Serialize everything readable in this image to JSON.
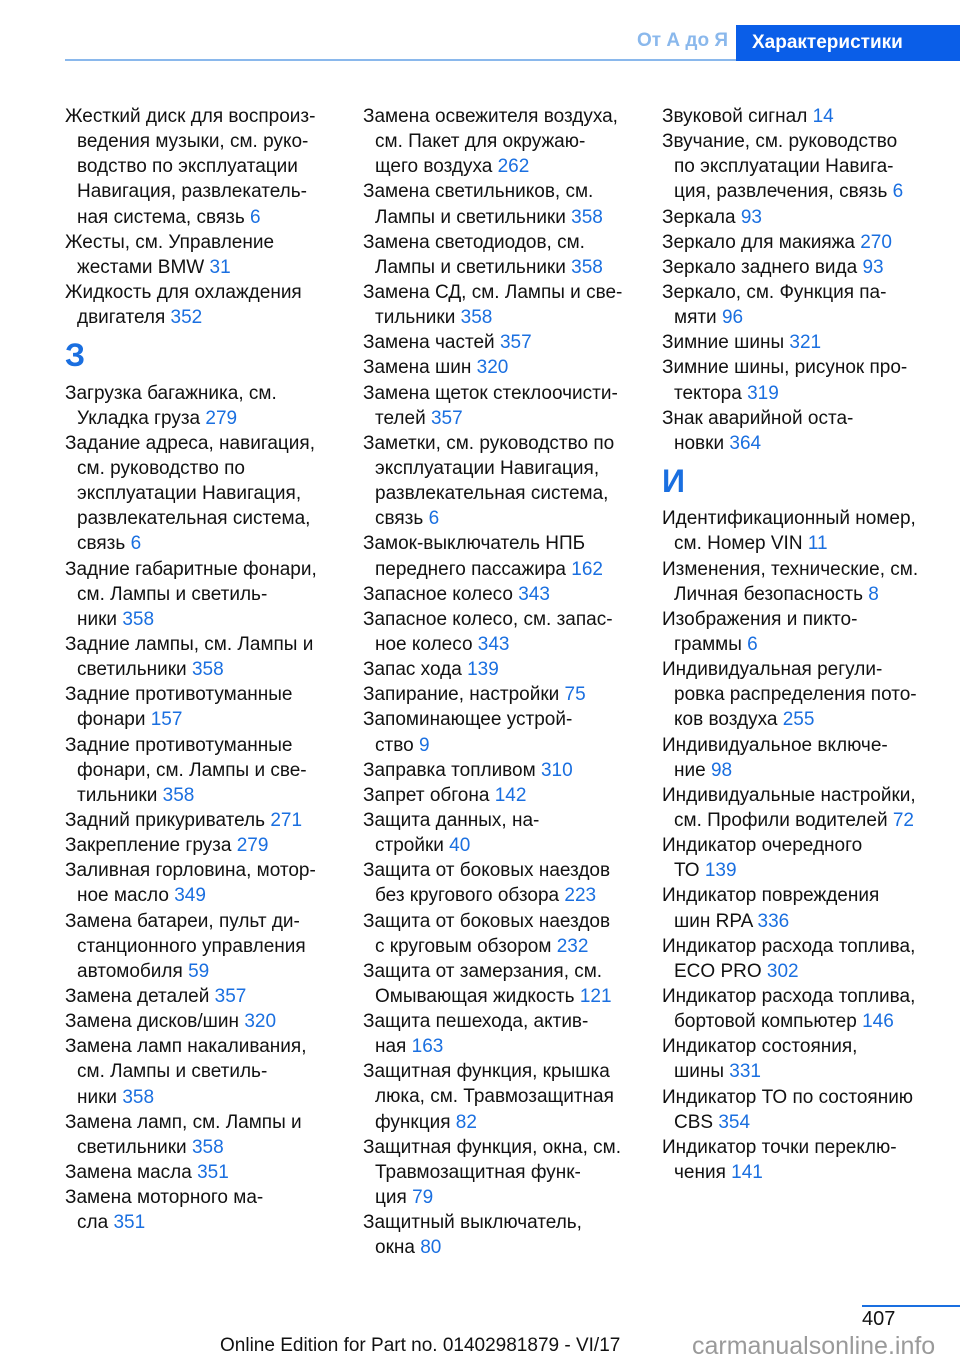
{
  "header": {
    "inactive_tab": "От А до Я",
    "active_tab": "Характеристики"
  },
  "columns": [
    {
      "entries": [
        {
          "lines": [
            "Жесткий диск для воспроиз-",
            "ведения музыки, см. руко-",
            "водство по эксплуатации",
            "Навигация, развлекатель-",
            "ная система, связь"
          ],
          "page": "6"
        },
        {
          "lines": [
            "Жесты, см. Управление",
            "жестами BMW"
          ],
          "page": "31"
        },
        {
          "lines": [
            "Жидкость для охлаждения",
            "двигателя"
          ],
          "page": "352"
        },
        {
          "heading": "З"
        },
        {
          "lines": [
            "Загрузка багажника, см.",
            "Укладка груза"
          ],
          "page": "279"
        },
        {
          "lines": [
            "Задание адреса, навигация,",
            "см. руководство по",
            "эксплуатации Навигация,",
            "развлекательная система,",
            "связь"
          ],
          "page": "6"
        },
        {
          "lines": [
            "Задние габаритные фонари,",
            "см. Лампы и светиль-",
            "ники"
          ],
          "page": "358"
        },
        {
          "lines": [
            "Задние лампы, см. Лампы и",
            "светильники"
          ],
          "page": "358"
        },
        {
          "lines": [
            "Задние противотуманные",
            "фонари"
          ],
          "page": "157"
        },
        {
          "lines": [
            "Задние противотуманные",
            "фонари, см. Лампы и све-",
            "тильники"
          ],
          "page": "358"
        },
        {
          "lines": [
            "Задний прикуриватель"
          ],
          "page": "271"
        },
        {
          "lines": [
            "Закрепление груза"
          ],
          "page": "279"
        },
        {
          "lines": [
            "Заливная горловина, мотор-",
            "ное масло"
          ],
          "page": "349"
        },
        {
          "lines": [
            "Замена батареи, пульт ди-",
            "станционного управления",
            "автомобиля"
          ],
          "page": "59"
        },
        {
          "lines": [
            "Замена деталей"
          ],
          "page": "357"
        },
        {
          "lines": [
            "Замена дисков/шин"
          ],
          "page": "320"
        },
        {
          "lines": [
            "Замена ламп накаливания,",
            "см. Лампы и светиль-",
            "ники"
          ],
          "page": "358"
        },
        {
          "lines": [
            "Замена ламп, см. Лампы и",
            "светильники"
          ],
          "page": "358"
        },
        {
          "lines": [
            "Замена масла"
          ],
          "page": "351"
        },
        {
          "lines": [
            "Замена моторного ма-",
            "сла"
          ],
          "page": "351"
        }
      ]
    },
    {
      "entries": [
        {
          "lines": [
            "Замена освежителя воздуха,",
            "см. Пакет для окружаю-",
            "щего воздуха"
          ],
          "page": "262"
        },
        {
          "lines": [
            "Замена светильников, см.",
            "Лампы и светильники"
          ],
          "page": "358"
        },
        {
          "lines": [
            "Замена светодиодов, см.",
            "Лампы и светильники"
          ],
          "page": "358"
        },
        {
          "lines": [
            "Замена СД, см. Лампы и све-",
            "тильники"
          ],
          "page": "358"
        },
        {
          "lines": [
            "Замена частей"
          ],
          "page": "357"
        },
        {
          "lines": [
            "Замена шин"
          ],
          "page": "320"
        },
        {
          "lines": [
            "Замена щеток стеклоочисти-",
            "телей"
          ],
          "page": "357"
        },
        {
          "lines": [
            "Заметки, см. руководство по",
            "эксплуатации Навигация,",
            "развлекательная система,",
            "связь"
          ],
          "page": "6"
        },
        {
          "lines": [
            "Замок-выключатель НПБ",
            "переднего пассажира"
          ],
          "page": "162"
        },
        {
          "lines": [
            "Запасное колесо"
          ],
          "page": "343"
        },
        {
          "lines": [
            "Запасное колесо, см. запас-",
            "ное колесо"
          ],
          "page": "343"
        },
        {
          "lines": [
            "Запас хода"
          ],
          "page": "139"
        },
        {
          "lines": [
            "Запирание, настройки"
          ],
          "page": "75"
        },
        {
          "lines": [
            "Запоминающее устрой-",
            "ство"
          ],
          "page": "9"
        },
        {
          "lines": [
            "Заправка топливом"
          ],
          "page": "310"
        },
        {
          "lines": [
            "Запрет обгона"
          ],
          "page": "142"
        },
        {
          "lines": [
            "Защита данных, на-",
            "стройки"
          ],
          "page": "40"
        },
        {
          "lines": [
            "Защита от боковых наездов",
            "без кругового обзора"
          ],
          "page": "223"
        },
        {
          "lines": [
            "Защита от боковых наездов",
            "с круговым обзором"
          ],
          "page": "232"
        },
        {
          "lines": [
            "Защита от замерзания, см.",
            "Омывающая жидкость"
          ],
          "page": "121"
        },
        {
          "lines": [
            "Защита пешехода, актив-",
            "ная"
          ],
          "page": "163"
        },
        {
          "lines": [
            "Защитная функция, крышка",
            "люка, см. Травмозащитная",
            "функция"
          ],
          "page": "82"
        },
        {
          "lines": [
            "Защитная функция, окна, см.",
            "Травмозащитная функ-",
            "ция"
          ],
          "page": "79"
        },
        {
          "lines": [
            "Защитный выключатель,",
            "окна"
          ],
          "page": "80"
        }
      ]
    },
    {
      "entries": [
        {
          "lines": [
            "Звуковой сигнал"
          ],
          "page": "14"
        },
        {
          "lines": [
            "Звучание, см. руководство",
            "по эксплуатации Навига-",
            "ция, развлечения, связь"
          ],
          "page": "6"
        },
        {
          "lines": [
            "Зеркала"
          ],
          "page": "93"
        },
        {
          "lines": [
            "Зеркало для макияжа"
          ],
          "page": "270"
        },
        {
          "lines": [
            "Зеркало заднего вида"
          ],
          "page": "93"
        },
        {
          "lines": [
            "Зеркало, см. Функция па-",
            "мяти"
          ],
          "page": "96"
        },
        {
          "lines": [
            "Зимние шины"
          ],
          "page": "321"
        },
        {
          "lines": [
            "Зимние шины, рисунок про-",
            "тектора"
          ],
          "page": "319"
        },
        {
          "lines": [
            "Знак аварийной оста-",
            "новки"
          ],
          "page": "364"
        },
        {
          "heading": "И"
        },
        {
          "lines": [
            "Идентификационный номер,",
            "см. Номер VIN"
          ],
          "page": "11"
        },
        {
          "lines": [
            "Изменения, технические, см.",
            "Личная безопасность"
          ],
          "page": "8"
        },
        {
          "lines": [
            "Изображения и пикто-",
            "граммы"
          ],
          "page": "6"
        },
        {
          "lines": [
            "Индивидуальная регули-",
            "ровка распределения пото-",
            "ков воздуха"
          ],
          "page": "255"
        },
        {
          "lines": [
            "Индивидуальное включе-",
            "ние"
          ],
          "page": "98"
        },
        {
          "lines": [
            "Индивидуальные настройки,",
            "см. Профили водителей"
          ],
          "page": "72"
        },
        {
          "lines": [
            "Индикатор очередного",
            "ТО"
          ],
          "page": "139"
        },
        {
          "lines": [
            "Индикатор повреждения",
            "шин RPA"
          ],
          "page": "336"
        },
        {
          "lines": [
            "Индикатор расхода топлива,",
            "ECO PRO"
          ],
          "page": "302"
        },
        {
          "lines": [
            "Индикатор расхода топлива,",
            "бортовой компьютер"
          ],
          "page": "146"
        },
        {
          "lines": [
            "Индикатор состояния,",
            "шины"
          ],
          "page": "331"
        },
        {
          "lines": [
            "Индикатор ТО по состоянию",
            "CBS"
          ],
          "page": "354"
        },
        {
          "lines": [
            "Индикатор точки переклю-",
            "чения"
          ],
          "page": "141"
        }
      ]
    }
  ],
  "footer": {
    "page_number": "407",
    "edition": "Online Edition for Part no. 01402981879 - VI/17",
    "watermark": "carmanualsonline.info"
  },
  "colors": {
    "accent": "#0a5ee8",
    "link": "#1a6fe0",
    "inactive": "#8ab8ec"
  }
}
